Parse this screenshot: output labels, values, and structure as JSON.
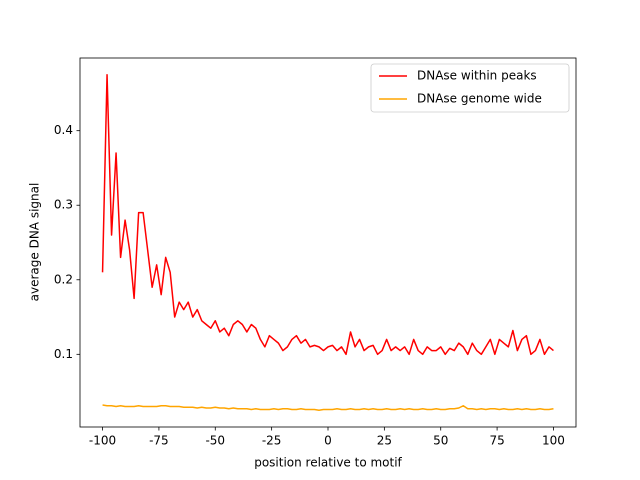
{
  "chart_data": {
    "type": "line",
    "xlabel": "position relative to motif",
    "ylabel": "average DNA signal",
    "x": [
      -100,
      -98,
      -96,
      -94,
      -92,
      -90,
      -88,
      -86,
      -84,
      -82,
      -80,
      -78,
      -76,
      -74,
      -72,
      -70,
      -68,
      -66,
      -64,
      -62,
      -60,
      -58,
      -56,
      -54,
      -52,
      -50,
      -48,
      -46,
      -44,
      -42,
      -40,
      -38,
      -36,
      -34,
      -32,
      -30,
      -28,
      -26,
      -24,
      -22,
      -20,
      -18,
      -16,
      -14,
      -12,
      -10,
      -8,
      -6,
      -4,
      -2,
      0,
      2,
      4,
      6,
      8,
      10,
      12,
      14,
      16,
      18,
      20,
      22,
      24,
      26,
      28,
      30,
      32,
      34,
      36,
      38,
      40,
      42,
      44,
      46,
      48,
      50,
      52,
      54,
      56,
      58,
      60,
      62,
      64,
      66,
      68,
      70,
      72,
      74,
      76,
      78,
      80,
      82,
      84,
      86,
      88,
      90,
      92,
      94,
      96,
      98,
      100
    ],
    "series": [
      {
        "name": "DNAse within peaks",
        "color": "#ff0000",
        "values": [
          0.21,
          0.475,
          0.26,
          0.37,
          0.23,
          0.28,
          0.24,
          0.175,
          0.29,
          0.29,
          0.24,
          0.19,
          0.22,
          0.18,
          0.23,
          0.21,
          0.15,
          0.17,
          0.16,
          0.17,
          0.15,
          0.16,
          0.145,
          0.14,
          0.135,
          0.145,
          0.13,
          0.135,
          0.125,
          0.14,
          0.145,
          0.14,
          0.13,
          0.14,
          0.135,
          0.12,
          0.11,
          0.125,
          0.12,
          0.115,
          0.105,
          0.11,
          0.12,
          0.125,
          0.115,
          0.12,
          0.11,
          0.112,
          0.11,
          0.105,
          0.11,
          0.112,
          0.105,
          0.11,
          0.1,
          0.13,
          0.11,
          0.12,
          0.105,
          0.11,
          0.112,
          0.1,
          0.105,
          0.12,
          0.105,
          0.11,
          0.105,
          0.11,
          0.1,
          0.12,
          0.105,
          0.1,
          0.11,
          0.105,
          0.105,
          0.11,
          0.1,
          0.108,
          0.105,
          0.115,
          0.11,
          0.1,
          0.115,
          0.105,
          0.1,
          0.11,
          0.12,
          0.1,
          0.12,
          0.115,
          0.11,
          0.132,
          0.105,
          0.12,
          0.125,
          0.1,
          0.105,
          0.12,
          0.1,
          0.11,
          0.105
        ]
      },
      {
        "name": "DNAse genome wide",
        "color": "#ffa500",
        "values": [
          0.032,
          0.031,
          0.031,
          0.03,
          0.031,
          0.03,
          0.03,
          0.03,
          0.031,
          0.03,
          0.03,
          0.03,
          0.03,
          0.031,
          0.031,
          0.03,
          0.03,
          0.03,
          0.029,
          0.029,
          0.029,
          0.028,
          0.029,
          0.028,
          0.028,
          0.029,
          0.028,
          0.028,
          0.027,
          0.028,
          0.027,
          0.027,
          0.027,
          0.026,
          0.027,
          0.026,
          0.026,
          0.026,
          0.027,
          0.026,
          0.027,
          0.027,
          0.026,
          0.026,
          0.027,
          0.026,
          0.026,
          0.026,
          0.025,
          0.026,
          0.026,
          0.026,
          0.027,
          0.026,
          0.026,
          0.027,
          0.026,
          0.026,
          0.027,
          0.026,
          0.027,
          0.026,
          0.026,
          0.027,
          0.026,
          0.026,
          0.027,
          0.026,
          0.027,
          0.026,
          0.026,
          0.027,
          0.026,
          0.026,
          0.027,
          0.026,
          0.026,
          0.027,
          0.027,
          0.028,
          0.031,
          0.027,
          0.027,
          0.026,
          0.027,
          0.026,
          0.027,
          0.027,
          0.026,
          0.027,
          0.026,
          0.026,
          0.027,
          0.026,
          0.027,
          0.026,
          0.026,
          0.027,
          0.026,
          0.026,
          0.027
        ]
      }
    ],
    "xlim": [
      -110,
      110
    ],
    "xticks": [
      -100,
      -75,
      -50,
      -25,
      0,
      25,
      50,
      75,
      100
    ],
    "ylim": [
      0.0025,
      0.4975
    ],
    "yticks": [
      0.1,
      0.2,
      0.3,
      0.4
    ],
    "legend": "upper right"
  }
}
